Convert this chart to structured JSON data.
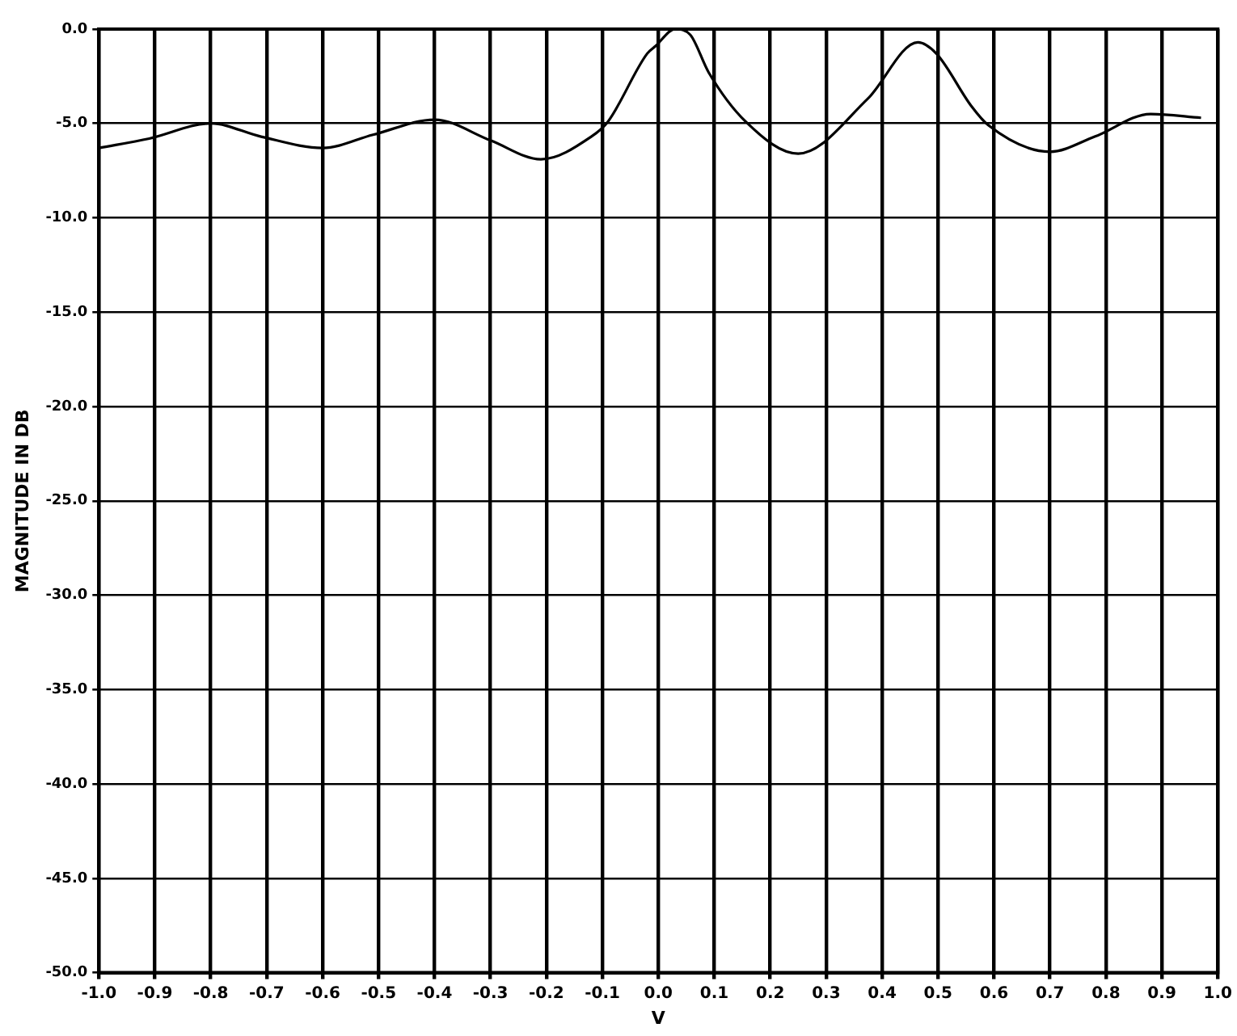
{
  "chart_data": {
    "type": "line",
    "xlabel": "V",
    "ylabel": "MAGNITUDE IN DB",
    "xlim": [
      -1.0,
      1.0
    ],
    "ylim": [
      -50.0,
      0.0
    ],
    "xticks": [
      {
        "value": -1.0,
        "label": "-1.0"
      },
      {
        "value": -0.9,
        "label": "-0.9"
      },
      {
        "value": -0.8,
        "label": "-0.8"
      },
      {
        "value": -0.7,
        "label": "-0.7"
      },
      {
        "value": -0.6,
        "label": "-0.6"
      },
      {
        "value": -0.5,
        "label": "-0.5"
      },
      {
        "value": -0.4,
        "label": "-0.4"
      },
      {
        "value": -0.3,
        "label": "-0.3"
      },
      {
        "value": -0.2,
        "label": "-0.2"
      },
      {
        "value": -0.1,
        "label": "-0.1"
      },
      {
        "value": 0,
        "label": "0.0"
      },
      {
        "value": 0.1,
        "label": "0.1"
      },
      {
        "value": 0.2,
        "label": "0.2"
      },
      {
        "value": 0.3,
        "label": "0.3"
      },
      {
        "value": 0.4,
        "label": "0.4"
      },
      {
        "value": 0.5,
        "label": "0.5"
      },
      {
        "value": 0.6,
        "label": "0.6"
      },
      {
        "value": 0.7,
        "label": "0.7"
      },
      {
        "value": 0.8,
        "label": "0.8"
      },
      {
        "value": 0.9,
        "label": "0.9"
      },
      {
        "value": 1.0,
        "label": "1.0"
      }
    ],
    "yticks": [
      {
        "value": 0,
        "label": "0.0"
      },
      {
        "value": -5,
        "label": "-5.0"
      },
      {
        "value": -10,
        "label": "-10.0"
      },
      {
        "value": -15,
        "label": "-15.0"
      },
      {
        "value": -20,
        "label": "-20.0"
      },
      {
        "value": -25,
        "label": "-25.0"
      },
      {
        "value": -30,
        "label": "-30.0"
      },
      {
        "value": -35,
        "label": "-35.0"
      },
      {
        "value": -40,
        "label": "-40.0"
      },
      {
        "value": -45,
        "label": "-45.0"
      },
      {
        "value": -50,
        "label": "-50.0"
      }
    ],
    "grid": true,
    "legend": false,
    "marker": "none",
    "line_style": "solid",
    "series": [
      {
        "color": "#000000",
        "x": [
          -1.0,
          -0.91,
          -0.8,
          -0.71,
          -0.6,
          -0.51,
          -0.4,
          -0.3,
          -0.21,
          -0.12,
          -0.09,
          -0.02,
          -0.005,
          0.03,
          0.057,
          0.09,
          0.156,
          0.25,
          0.374,
          0.464,
          0.497,
          0.56,
          0.59,
          0.7,
          0.78,
          0.88,
          0.97
        ],
        "values": [
          -6.3,
          -5.8,
          -5.0,
          -5.7,
          -6.3,
          -5.6,
          -4.8,
          -5.9,
          -6.9,
          -5.7,
          -4.9,
          -1.3,
          -0.9,
          0.0,
          -0.3,
          -2.3,
          -4.9,
          -6.6,
          -3.7,
          -0.7,
          -1.3,
          -4.1,
          -5.1,
          -6.5,
          -5.7,
          -4.5,
          -4.7
        ]
      }
    ]
  }
}
